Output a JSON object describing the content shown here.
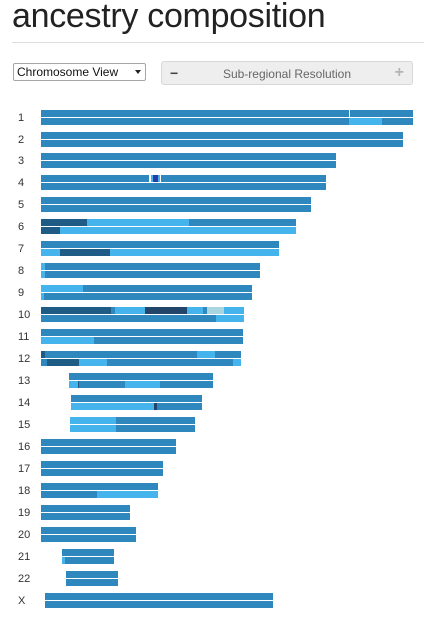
{
  "title": "ancestry composition",
  "controls": {
    "view_select": "Chromosome View",
    "resolution_label": "Sub-regional Resolution",
    "minus_symbol": "−",
    "plus_symbol": "+"
  },
  "colors": {
    "base": "#2e88bd",
    "light": "#45b4ec",
    "dark": "#1f5c85",
    "navy": "#23456a",
    "pale": "#a8d5df",
    "indigo": "#2b3aa8",
    "white": "#ffffff"
  },
  "chromosomes": [
    {
      "label": "1",
      "top": [
        [
          "white",
          0.827,
          0.831
        ]
      ],
      "bot": [
        [
          "light",
          0.827,
          0.918
        ]
      ]
    },
    {
      "label": "2",
      "top": [],
      "bot": []
    },
    {
      "label": "3",
      "top": [],
      "bot": []
    },
    {
      "label": "4",
      "top": [
        [
          "white",
          0.379,
          0.385
        ],
        [
          "light",
          0.385,
          0.393
        ],
        [
          "indigo",
          0.393,
          0.412
        ],
        [
          "light",
          0.412,
          0.418
        ],
        [
          "white",
          0.418,
          0.422
        ]
      ],
      "bot": []
    },
    {
      "label": "5",
      "top": [],
      "bot": []
    },
    {
      "label": "6",
      "top": [
        [
          "dark",
          0.0,
          0.18
        ],
        [
          "light",
          0.18,
          0.58
        ]
      ],
      "bot": [
        [
          "dark",
          0.0,
          0.075
        ],
        [
          "light",
          0.075,
          1.0
        ]
      ]
    },
    {
      "label": "7",
      "top": [],
      "bot": [
        [
          "light",
          0.0,
          0.08
        ],
        [
          "dark",
          0.08,
          0.29
        ],
        [
          "light",
          0.29,
          1.0
        ]
      ]
    },
    {
      "label": "8",
      "top": [
        [
          "light",
          0.0,
          0.02
        ]
      ],
      "bot": [
        [
          "light",
          0.0,
          0.02
        ]
      ]
    },
    {
      "label": "9",
      "top": [
        [
          "light",
          0.0,
          0.2
        ]
      ],
      "bot": [
        [
          "light",
          0.0,
          0.015
        ]
      ]
    },
    {
      "label": "10",
      "top": [
        [
          "dark",
          0.0,
          0.345
        ],
        [
          "light",
          0.365,
          0.51
        ],
        [
          "navy",
          0.51,
          0.72
        ],
        [
          "light",
          0.72,
          0.8
        ],
        [
          "pale",
          0.82,
          0.9
        ],
        [
          "light",
          0.9,
          1.0
        ]
      ],
      "bot": [
        [
          "light",
          0.86,
          1.0
        ]
      ]
    },
    {
      "label": "11",
      "top": [],
      "bot": [
        [
          "light",
          0.0,
          0.26
        ]
      ]
    },
    {
      "label": "12",
      "top": [
        [
          "dark",
          0.0,
          0.02
        ],
        [
          "light",
          0.78,
          0.87
        ]
      ],
      "bot": [
        [
          "dark",
          0.03,
          0.19
        ],
        [
          "light",
          0.19,
          0.33
        ],
        [
          "light",
          0.96,
          1.0
        ]
      ]
    },
    {
      "label": "13",
      "top": [],
      "bot": [
        [
          "light",
          0.0,
          0.06
        ],
        [
          "dark",
          0.06,
          0.07
        ],
        [
          "light",
          0.39,
          0.63
        ]
      ]
    },
    {
      "label": "14",
      "top": [],
      "bot": [
        [
          "light",
          0.0,
          0.63
        ],
        [
          "navy",
          0.63,
          0.655
        ]
      ]
    },
    {
      "label": "15",
      "top": [
        [
          "light",
          0.0,
          0.37
        ]
      ],
      "bot": [
        [
          "light",
          0.0,
          0.37
        ]
      ]
    },
    {
      "label": "16",
      "top": [],
      "bot": []
    },
    {
      "label": "17",
      "top": [],
      "bot": []
    },
    {
      "label": "18",
      "top": [],
      "bot": [
        [
          "light",
          0.0,
          0.0
        ],
        [
          "light",
          0.48,
          1.0
        ]
      ]
    },
    {
      "label": "19",
      "top": [],
      "bot": []
    },
    {
      "label": "20",
      "top": [],
      "bot": []
    },
    {
      "label": "21",
      "top": [],
      "bot": [
        [
          "light",
          0.0,
          0.06
        ]
      ]
    },
    {
      "label": "22",
      "top": [],
      "bot": []
    },
    {
      "label": "X",
      "top": [],
      "bot": []
    }
  ]
}
